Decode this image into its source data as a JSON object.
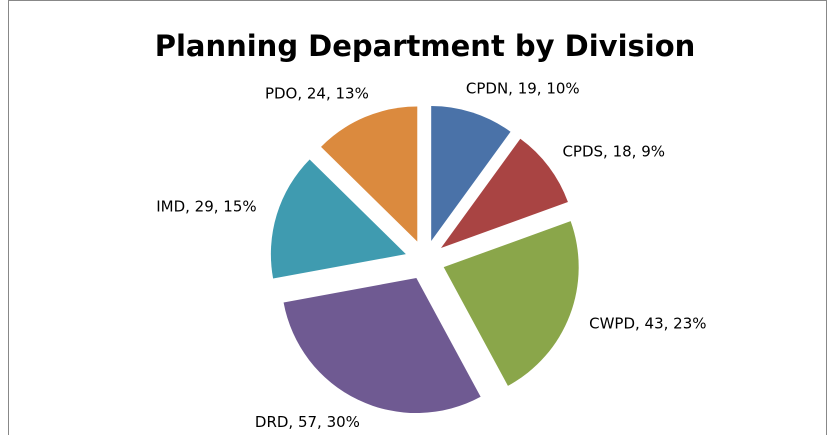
{
  "chart_data": {
    "type": "pie",
    "title": "Planning Department by Division",
    "categories": [
      "CPDN",
      "CPDS",
      "CWPD",
      "DRD",
      "IMD",
      "PDO"
    ],
    "values": [
      19,
      18,
      43,
      57,
      29,
      24
    ],
    "value_labels": [
      "CPDN, 19, 10%",
      "CPDS, 18, 9%",
      "CWPD, 43, 23%",
      "DRD, 57, 30%",
      "IMD, 29, 15%",
      "PDO, 24, 13%"
    ],
    "colors": [
      "#4a72a8",
      "#a94443",
      "#8aa64a",
      "#6f5a92",
      "#3f9bb0",
      "#db8a3e"
    ]
  }
}
